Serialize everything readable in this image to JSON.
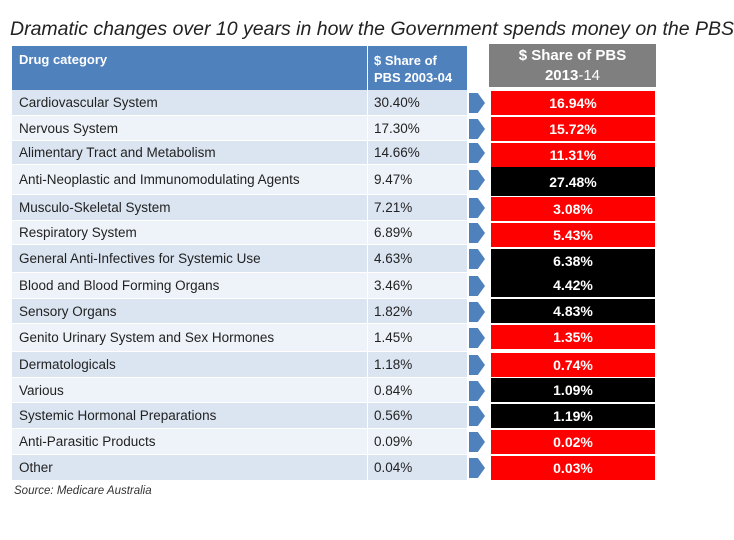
{
  "title": "Dramatic changes over 10 years in how the Government spends money on the PBS",
  "table": {
    "header_category": "Drug category",
    "header_share_line1": "$ Share of",
    "header_share_line2": "PBS 2003-04"
  },
  "right_header": {
    "line1": "$ Share of PBS",
    "line2a": "2013",
    "line2b": "-14"
  },
  "colors": {
    "red": "#ff0000",
    "black": "#000000",
    "header_blue": "#4f81bd",
    "header_grey": "#7f7f7f"
  },
  "rows": [
    {
      "category": "Cardiovascular System",
      "share_2003": "30.40%",
      "share_2013": "16.94%",
      "trend": "red"
    },
    {
      "category": "Nervous System",
      "share_2003": "17.30%",
      "share_2013": "15.72%",
      "trend": "red"
    },
    {
      "category": "Alimentary Tract and Metabolism",
      "share_2003": "14.66%",
      "share_2013": "11.31%",
      "trend": "red"
    },
    {
      "category": "Anti-Neoplastic and Immunomodulating Agents",
      "share_2003": "9.47%",
      "share_2013": "27.48%",
      "trend": "black"
    },
    {
      "category": "Musculo-Skeletal System",
      "share_2003": "7.21%",
      "share_2013": "3.08%",
      "trend": "red"
    },
    {
      "category": "Respiratory System",
      "share_2003": "6.89%",
      "share_2013": "5.43%",
      "trend": "red"
    },
    {
      "category": "General Anti-Infectives for Systemic Use",
      "share_2003": "4.63%",
      "share_2013": "6.38%",
      "trend": "black"
    },
    {
      "category": "Blood and Blood Forming Organs",
      "share_2003": "3.46%",
      "share_2013": "4.42%",
      "trend": "black"
    },
    {
      "category": "Sensory Organs",
      "share_2003": "1.82%",
      "share_2013": "4.83%",
      "trend": "black"
    },
    {
      "category": "Genito Urinary System and Sex Hormones",
      "share_2003": "1.45%",
      "share_2013": "1.35%",
      "trend": "red"
    },
    {
      "category": "Dermatologicals",
      "share_2003": "1.18%",
      "share_2013": "0.74%",
      "trend": "red"
    },
    {
      "category": "Various",
      "share_2003": "0.84%",
      "share_2013": "1.09%",
      "trend": "black"
    },
    {
      "category": "Systemic Hormonal Preparations",
      "share_2003": "0.56%",
      "share_2013": "1.19%",
      "trend": "black"
    },
    {
      "category": "Anti-Parasitic Products",
      "share_2003": "0.09%",
      "share_2013": "0.02%",
      "trend": "red"
    },
    {
      "category": "Other",
      "share_2003": "0.04%",
      "share_2013": "0.03%",
      "trend": "red"
    }
  ],
  "source": "Source: Medicare Australia"
}
